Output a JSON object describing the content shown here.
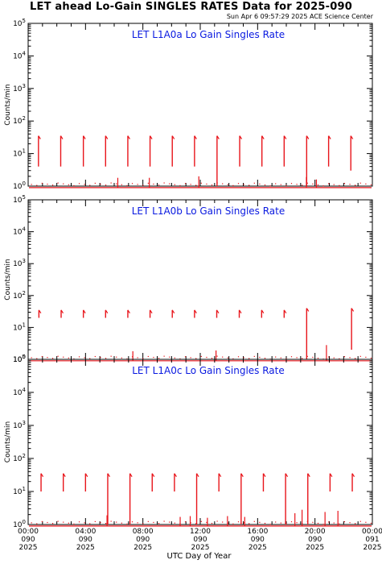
{
  "header": {
    "title": "LET ahead Lo-Gain SINGLES RATES Data for 2025-090",
    "timestamp": "Sun Apr  6 09:57:29 2025 ACE Science Center"
  },
  "chart_data": {
    "type": "line",
    "xlabel": "UTC Day of Year",
    "ylabel": "Counts/min",
    "y_scale": "log",
    "ylim": [
      1,
      100000
    ],
    "y_ticks": [
      {
        "base": "10",
        "exp": "0"
      },
      {
        "base": "10",
        "exp": "1"
      },
      {
        "base": "10",
        "exp": "2"
      },
      {
        "base": "10",
        "exp": "3"
      },
      {
        "base": "10",
        "exp": "4"
      },
      {
        "base": "10",
        "exp": "5"
      }
    ],
    "xlim_hours": [
      0,
      24
    ],
    "x_ticks": [
      {
        "hour": 0,
        "time": "00:00",
        "doy": "090",
        "year": "2025"
      },
      {
        "hour": 4,
        "time": "04:00",
        "doy": "090",
        "year": "2025"
      },
      {
        "hour": 8,
        "time": "08:00",
        "doy": "090",
        "year": "2025"
      },
      {
        "hour": 12,
        "time": "12:00",
        "doy": "090",
        "year": "2025"
      },
      {
        "hour": 16,
        "time": "16:00",
        "doy": "090",
        "year": "2025"
      },
      {
        "hour": 20,
        "time": "20:00",
        "doy": "090",
        "year": "2025"
      },
      {
        "hour": 24,
        "time": "00:00",
        "doy": "091",
        "year": "2025"
      }
    ],
    "series_color": "#e8141a",
    "title_color": "#0a1ae0",
    "panels": [
      {
        "title": "LET L1A0a Lo Gain Singles Rate",
        "base_level": 0.9,
        "spikes": [
          {
            "hour": 0.72,
            "low": 4,
            "high": 35
          },
          {
            "hour": 2.27,
            "low": 4,
            "high": 35
          },
          {
            "hour": 3.85,
            "low": 4,
            "high": 35
          },
          {
            "hour": 5.4,
            "low": 4,
            "high": 35
          },
          {
            "hour": 6.95,
            "low": 4,
            "high": 35
          },
          {
            "hour": 8.5,
            "low": 4,
            "high": 35
          },
          {
            "hour": 10.05,
            "low": 4,
            "high": 35
          },
          {
            "hour": 11.6,
            "low": 4,
            "high": 35
          },
          {
            "hour": 13.17,
            "low": 1,
            "high": 35
          },
          {
            "hour": 14.75,
            "low": 4,
            "high": 35
          },
          {
            "hour": 16.3,
            "low": 4,
            "high": 35
          },
          {
            "hour": 17.85,
            "low": 4,
            "high": 35
          },
          {
            "hour": 19.42,
            "low": 1,
            "high": 35
          },
          {
            "hour": 20.95,
            "low": 4,
            "high": 35
          },
          {
            "hour": 22.5,
            "low": 3,
            "high": 35
          }
        ],
        "bumps": [
          {
            "hour": 6.25,
            "value": 1.8
          },
          {
            "hour": 8.45,
            "value": 1.8
          },
          {
            "hour": 11.9,
            "value": 2.0
          },
          {
            "hour": 19.4,
            "value": 1.9
          },
          {
            "hour": 20.1,
            "value": 1.6
          }
        ]
      },
      {
        "title": "LET L1A0b Lo Gain Singles Rate",
        "base_level": 0.9,
        "spikes": [
          {
            "hour": 0.75,
            "low": 20,
            "high": 35
          },
          {
            "hour": 2.3,
            "low": 20,
            "high": 35
          },
          {
            "hour": 3.85,
            "low": 20,
            "high": 35
          },
          {
            "hour": 5.4,
            "low": 20,
            "high": 35
          },
          {
            "hour": 6.95,
            "low": 20,
            "high": 35
          },
          {
            "hour": 8.5,
            "low": 20,
            "high": 35
          },
          {
            "hour": 10.05,
            "low": 20,
            "high": 35
          },
          {
            "hour": 11.6,
            "low": 20,
            "high": 35
          },
          {
            "hour": 13.15,
            "low": 20,
            "high": 35
          },
          {
            "hour": 14.72,
            "low": 20,
            "high": 35
          },
          {
            "hour": 16.28,
            "low": 20,
            "high": 35
          },
          {
            "hour": 17.85,
            "low": 20,
            "high": 35
          },
          {
            "hour": 19.42,
            "low": 1,
            "high": 40
          },
          {
            "hour": 22.55,
            "low": 2,
            "high": 40
          }
        ],
        "bumps": [
          {
            "hour": 7.3,
            "value": 1.8
          },
          {
            "hour": 13.1,
            "value": 1.9
          },
          {
            "hour": 20.8,
            "value": 2.8
          }
        ]
      },
      {
        "title": "LET L1A0c Lo Gain Singles Rate",
        "base_level": 0.9,
        "spikes": [
          {
            "hour": 0.9,
            "low": 10,
            "high": 35
          },
          {
            "hour": 2.45,
            "low": 10,
            "high": 35
          },
          {
            "hour": 4.0,
            "low": 10,
            "high": 35
          },
          {
            "hour": 5.55,
            "low": 1,
            "high": 35
          },
          {
            "hour": 7.1,
            "low": 1,
            "high": 35
          },
          {
            "hour": 8.65,
            "low": 10,
            "high": 35
          },
          {
            "hour": 10.2,
            "low": 10,
            "high": 35
          },
          {
            "hour": 11.75,
            "low": 1,
            "high": 35
          },
          {
            "hour": 13.3,
            "low": 10,
            "high": 35
          },
          {
            "hour": 14.85,
            "low": 1,
            "high": 35
          },
          {
            "hour": 16.4,
            "low": 10,
            "high": 35
          },
          {
            "hour": 17.95,
            "low": 1,
            "high": 35
          },
          {
            "hour": 19.5,
            "low": 1,
            "high": 35
          },
          {
            "hour": 21.05,
            "low": 10,
            "high": 35
          },
          {
            "hour": 22.6,
            "low": 10,
            "high": 35
          }
        ],
        "bumps": [
          {
            "hour": 5.5,
            "value": 1.9
          },
          {
            "hour": 10.6,
            "value": 1.7
          },
          {
            "hour": 11.3,
            "value": 1.8
          },
          {
            "hour": 12.5,
            "value": 1.6
          },
          {
            "hour": 13.9,
            "value": 1.8
          },
          {
            "hour": 15.1,
            "value": 1.7
          },
          {
            "hour": 18.6,
            "value": 2.2
          },
          {
            "hour": 19.1,
            "value": 2.8
          },
          {
            "hour": 20.7,
            "value": 2.4
          },
          {
            "hour": 21.6,
            "value": 2.6
          }
        ]
      }
    ]
  }
}
